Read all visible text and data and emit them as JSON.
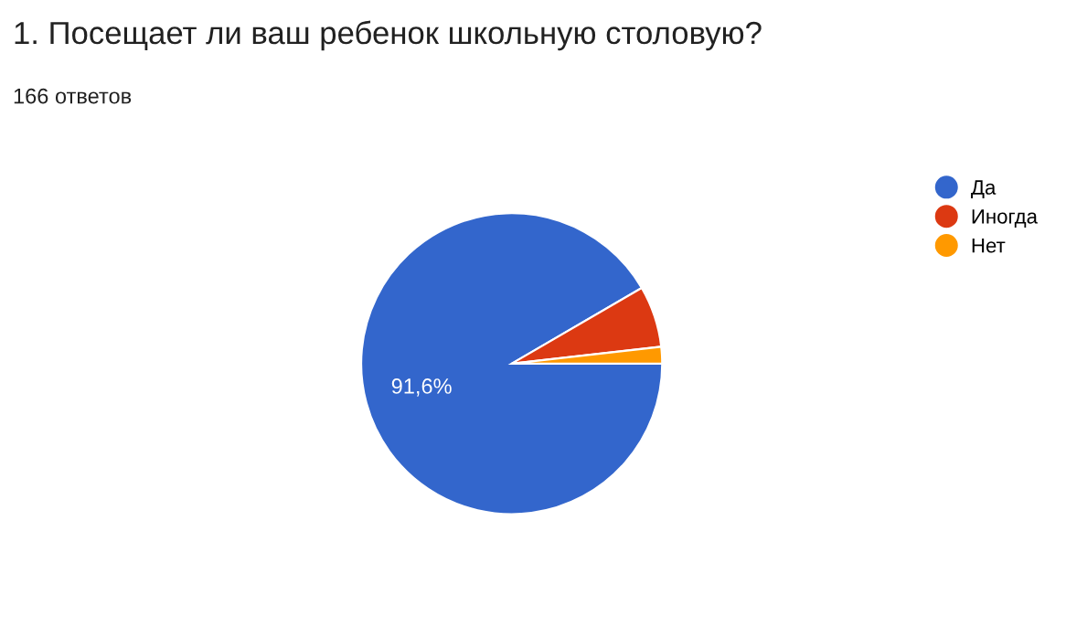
{
  "chart_data": {
    "type": "pie",
    "title": "1. Посещает ли ваш ребенок школьную столовую?",
    "subtitle": "166 ответов",
    "categories": [
      "Да",
      "Иногда",
      "Нет"
    ],
    "values": [
      91.6,
      6.6,
      1.8
    ],
    "colors": [
      "#3366cc",
      "#dc3912",
      "#ff9900"
    ],
    "value_labels": [
      "91,6%",
      null,
      null
    ],
    "legend": "right"
  }
}
